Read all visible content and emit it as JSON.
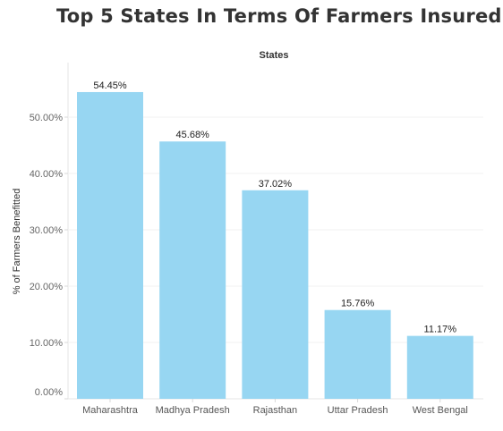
{
  "chart_data": {
    "type": "bar",
    "title": "Top 5 States In Terms Of Farmers Insured",
    "column_header": "States",
    "ylabel": "% of Farmers Benefitted",
    "xlabel": "",
    "categories": [
      "Maharashtra",
      "Madhya Pradesh",
      "Rajasthan",
      "Uttar Pradesh",
      "West Bengal"
    ],
    "values": [
      54.45,
      45.68,
      37.02,
      15.76,
      11.17
    ],
    "data_labels": [
      "54.45%",
      "45.68%",
      "37.02%",
      "15.76%",
      "11.17%"
    ],
    "yticks": [
      0,
      10,
      20,
      30,
      40,
      50
    ],
    "ytick_labels": [
      "0.00%",
      "10.00%",
      "20.00%",
      "30.00%",
      "40.00%",
      "50.00%"
    ],
    "ylim": [
      0,
      58
    ],
    "grid": true,
    "bar_color": "#97d6f2"
  }
}
